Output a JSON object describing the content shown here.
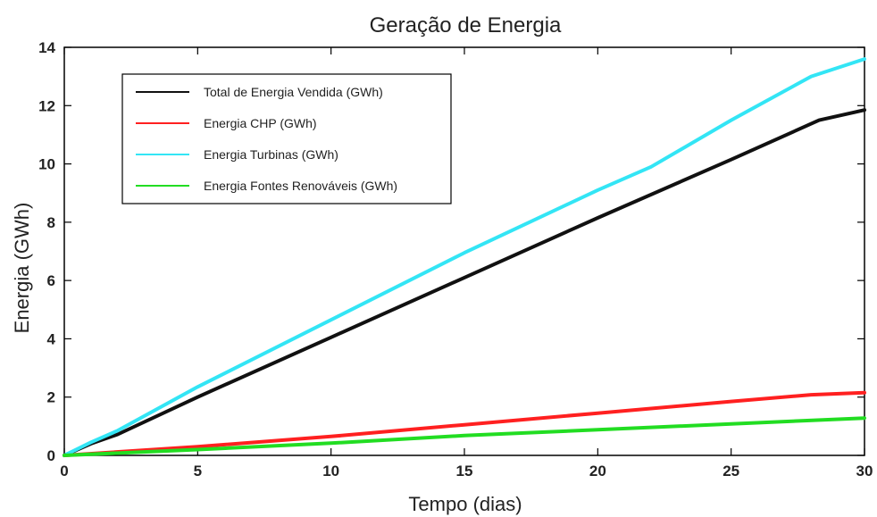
{
  "chart_data": {
    "type": "line",
    "title": "Geração de Energia",
    "xlabel": "Tempo (dias)",
    "ylabel": "Energia (GWh)",
    "xlim": [
      0,
      30
    ],
    "ylim": [
      0,
      14
    ],
    "xticks": [
      0,
      5,
      10,
      15,
      20,
      25,
      30
    ],
    "yticks": [
      0,
      2,
      4,
      6,
      8,
      10,
      12,
      14
    ],
    "grid": false,
    "legend_position": "top-left",
    "series": [
      {
        "name": "Total de Energia Vendida (GWh)",
        "color": "#111111",
        "x": [
          0,
          1,
          2,
          5,
          10,
          15,
          20,
          25,
          28.3,
          30
        ],
        "y": [
          0,
          0.4,
          0.72,
          2.0,
          4.05,
          6.1,
          8.15,
          10.15,
          11.5,
          11.85
        ]
      },
      {
        "name": "Energia CHP (GWh)",
        "color": "#ff2020",
        "x": [
          0,
          5,
          10,
          15,
          20,
          25,
          28,
          30
        ],
        "y": [
          0,
          0.3,
          0.65,
          1.05,
          1.45,
          1.85,
          2.08,
          2.15
        ]
      },
      {
        "name": "Energia Turbinas (GWh)",
        "color": "#33e5f5",
        "x": [
          0,
          1,
          2,
          5,
          10,
          15,
          20,
          22,
          25,
          28,
          30
        ],
        "y": [
          0,
          0.45,
          0.85,
          2.35,
          4.65,
          6.95,
          9.1,
          9.9,
          11.5,
          13.0,
          13.6
        ]
      },
      {
        "name": "Energia Fontes Renováveis (GWh)",
        "color": "#22dd22",
        "x": [
          0,
          5,
          10,
          15,
          20,
          25,
          30
        ],
        "y": [
          0,
          0.2,
          0.42,
          0.68,
          0.88,
          1.08,
          1.28
        ]
      }
    ]
  }
}
